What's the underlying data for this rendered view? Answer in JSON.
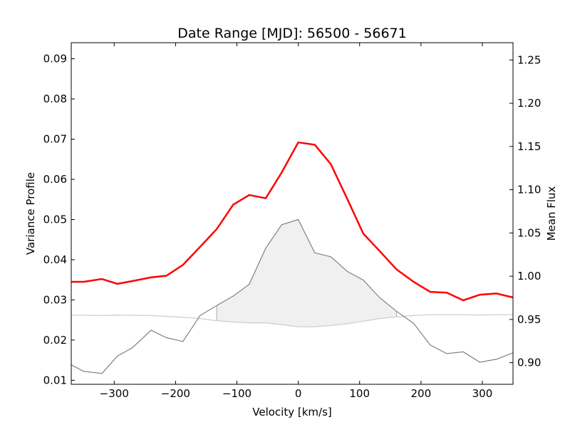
{
  "chart_data": {
    "type": "line",
    "title": "Date Range [MJD]: 56500 - 56671",
    "xlabel": "Velocity [km/s]",
    "ylabel": "Variance Profile",
    "y2label": "Mean Flux",
    "xlim": [
      -370,
      350
    ],
    "ylim": [
      0.009,
      0.094
    ],
    "y2lim": [
      0.875,
      1.27
    ],
    "xticks": [
      -300,
      -200,
      -100,
      0,
      100,
      200,
      300
    ],
    "xtick_labels": [
      "−300",
      "−200",
      "−100",
      "0",
      "100",
      "200",
      "300"
    ],
    "yticks": [
      0.01,
      0.02,
      0.03,
      0.04,
      0.05,
      0.06,
      0.07,
      0.08,
      0.09
    ],
    "ytick_labels": [
      "0.01",
      "0.02",
      "0.03",
      "0.04",
      "0.05",
      "0.06",
      "0.07",
      "0.08",
      "0.09"
    ],
    "y2ticks": [
      0.9,
      0.95,
      1.0,
      1.05,
      1.1,
      1.15,
      1.2,
      1.25
    ],
    "y2tick_labels": [
      "0.90",
      "0.95",
      "1.00",
      "1.05",
      "1.10",
      "1.15",
      "1.20",
      "1.25"
    ],
    "grid": false,
    "series": [
      {
        "axis": "left",
        "color": "#ff0000",
        "x": [
          -370,
          -350,
          -320,
          -295,
          -270,
          -240,
          -215,
          -188,
          -160,
          -133,
          -106,
          -80,
          -53,
          -27,
          0,
          27,
          53,
          80,
          106,
          133,
          160,
          188,
          215,
          242,
          269,
          296,
          323,
          350
        ],
        "y": [
          0.0345,
          0.0345,
          0.0352,
          0.034,
          0.0347,
          0.0356,
          0.036,
          0.0387,
          0.0432,
          0.0476,
          0.0537,
          0.0561,
          0.0553,
          0.0617,
          0.0692,
          0.0686,
          0.0638,
          0.0551,
          0.0465,
          0.0421,
          0.0376,
          0.0345,
          0.032,
          0.0318,
          0.0299,
          0.0313,
          0.0316,
          0.0306
        ]
      },
      {
        "axis": "right",
        "color": "#808080",
        "x": [
          -370,
          -350,
          -320,
          -295,
          -270,
          -240,
          -215,
          -188,
          -160,
          -133,
          -106,
          -80,
          -53,
          -27,
          0,
          27,
          53,
          80,
          106,
          133,
          160,
          188,
          215,
          242,
          269,
          296,
          323,
          350
        ],
        "y": [
          0.8975,
          0.89,
          0.8875,
          0.9075,
          0.9175,
          0.9375,
          0.929,
          0.9245,
          0.9545,
          0.966,
          0.977,
          0.9905,
          1.0325,
          1.0595,
          1.0655,
          1.027,
          1.0225,
          1.0055,
          0.9955,
          0.975,
          0.9595,
          0.9455,
          0.9205,
          0.9105,
          0.9125,
          0.9005,
          0.904,
          0.9115
        ]
      },
      {
        "axis": "right",
        "color": "#cccccc",
        "x": [
          -370,
          -320,
          -295,
          -240,
          -188,
          -160,
          -133,
          -106,
          -80,
          -53,
          -27,
          0,
          27,
          53,
          80,
          106,
          133,
          160,
          188,
          215,
          242,
          269,
          296,
          323,
          350
        ],
        "y": [
          0.955,
          0.9545,
          0.955,
          0.9545,
          0.9525,
          0.951,
          0.9485,
          0.947,
          0.946,
          0.946,
          0.944,
          0.9415,
          0.9415,
          0.943,
          0.945,
          0.948,
          0.951,
          0.953,
          0.9545,
          0.9555,
          0.9555,
          0.9555,
          0.955,
          0.9555,
          0.9555
        ]
      }
    ],
    "fill_between": {
      "axis": "right",
      "x_range": [
        -133,
        160
      ],
      "color": "#f0f0f0",
      "edge_color": "#aaaaaa"
    }
  }
}
